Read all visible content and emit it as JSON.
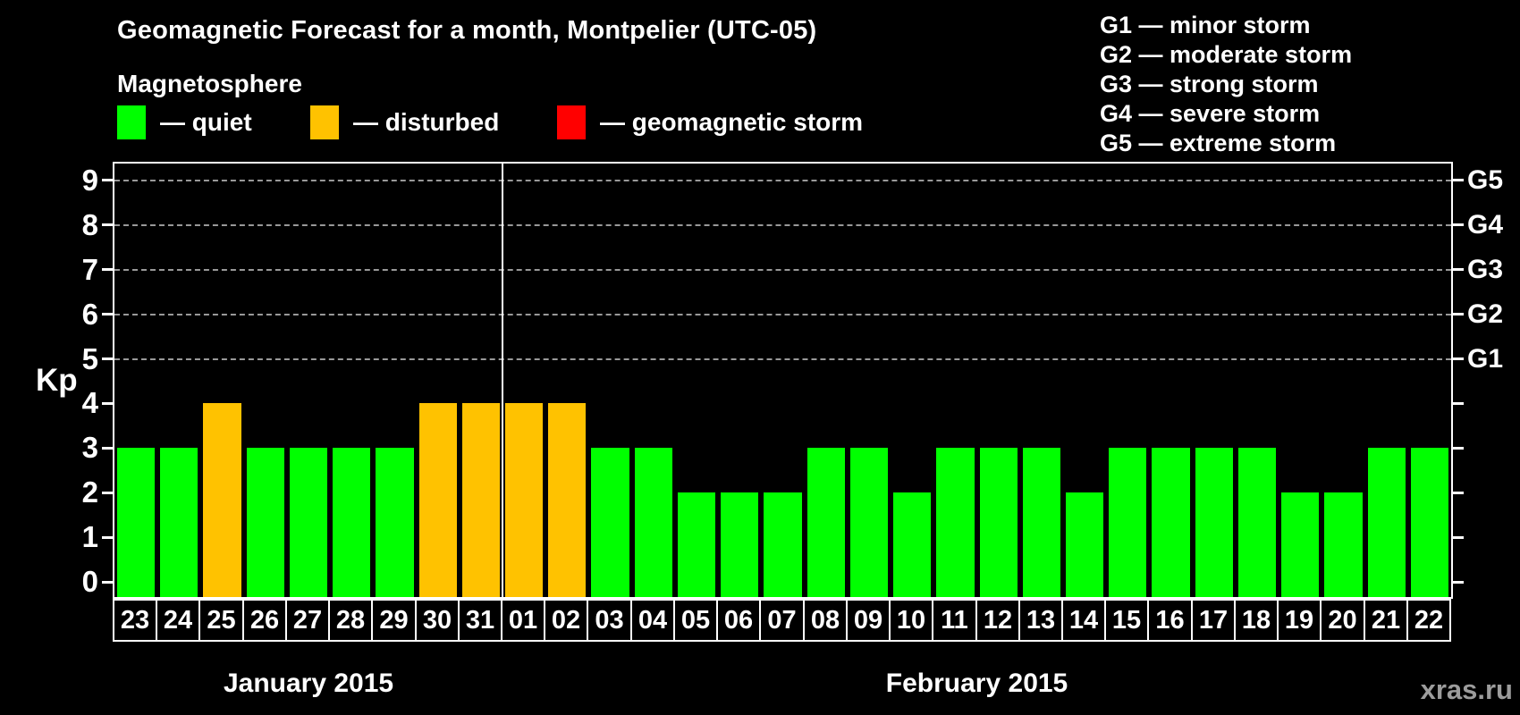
{
  "title": "Geomagnetic Forecast for a month, Montpelier (UTC-05)",
  "subtitle": "Magnetosphere",
  "watermark": "xras.ru",
  "legend": {
    "items": [
      {
        "name": "quiet",
        "label": "— quiet",
        "color": "#00ff00"
      },
      {
        "name": "disturbed",
        "label": "— disturbed",
        "color": "#ffc200"
      },
      {
        "name": "storm",
        "label": "— geomagnetic storm",
        "color": "#ff0000"
      }
    ]
  },
  "g_scale_legend": [
    "G1 — minor storm",
    "G2 — moderate storm",
    "G3 — strong storm",
    "G4 — severe storm",
    "G5 — extreme storm"
  ],
  "chart_data": {
    "type": "bar",
    "ylabel": "Kp",
    "ylim": [
      0,
      9
    ],
    "yticks": [
      0,
      1,
      2,
      3,
      4,
      5,
      6,
      7,
      8,
      9
    ],
    "gridlines_at_kp": [
      5,
      6,
      7,
      8,
      9
    ],
    "grid": "dashed horizontal at storm levels only",
    "legend_position": "top-left",
    "right_axis_labels": [
      {
        "label": "G1",
        "kp": 5
      },
      {
        "label": "G2",
        "kp": 6
      },
      {
        "label": "G3",
        "kp": 7
      },
      {
        "label": "G4",
        "kp": 8
      },
      {
        "label": "G5",
        "kp": 9
      }
    ],
    "months": [
      {
        "label": "January 2015",
        "days": 9
      },
      {
        "label": "February 2015",
        "days": 22
      }
    ],
    "categories": [
      "23",
      "24",
      "25",
      "26",
      "27",
      "28",
      "29",
      "30",
      "31",
      "01",
      "02",
      "03",
      "04",
      "05",
      "06",
      "07",
      "08",
      "09",
      "10",
      "11",
      "12",
      "13",
      "14",
      "15",
      "16",
      "17",
      "18",
      "19",
      "20",
      "21",
      "22"
    ],
    "values": [
      3,
      3,
      4,
      3,
      3,
      3,
      3,
      4,
      4,
      4,
      4,
      3,
      3,
      2,
      2,
      2,
      3,
      3,
      2,
      3,
      3,
      3,
      2,
      3,
      3,
      3,
      3,
      2,
      2,
      3,
      3
    ],
    "states": [
      "quiet",
      "quiet",
      "disturbed",
      "quiet",
      "quiet",
      "quiet",
      "quiet",
      "disturbed",
      "disturbed",
      "disturbed",
      "disturbed",
      "quiet",
      "quiet",
      "quiet",
      "quiet",
      "quiet",
      "quiet",
      "quiet",
      "quiet",
      "quiet",
      "quiet",
      "quiet",
      "quiet",
      "quiet",
      "quiet",
      "quiet",
      "quiet",
      "quiet",
      "quiet",
      "quiet",
      "quiet"
    ],
    "colors": {
      "quiet": "#00ff00",
      "disturbed": "#ffc200",
      "storm": "#ff0000"
    }
  }
}
